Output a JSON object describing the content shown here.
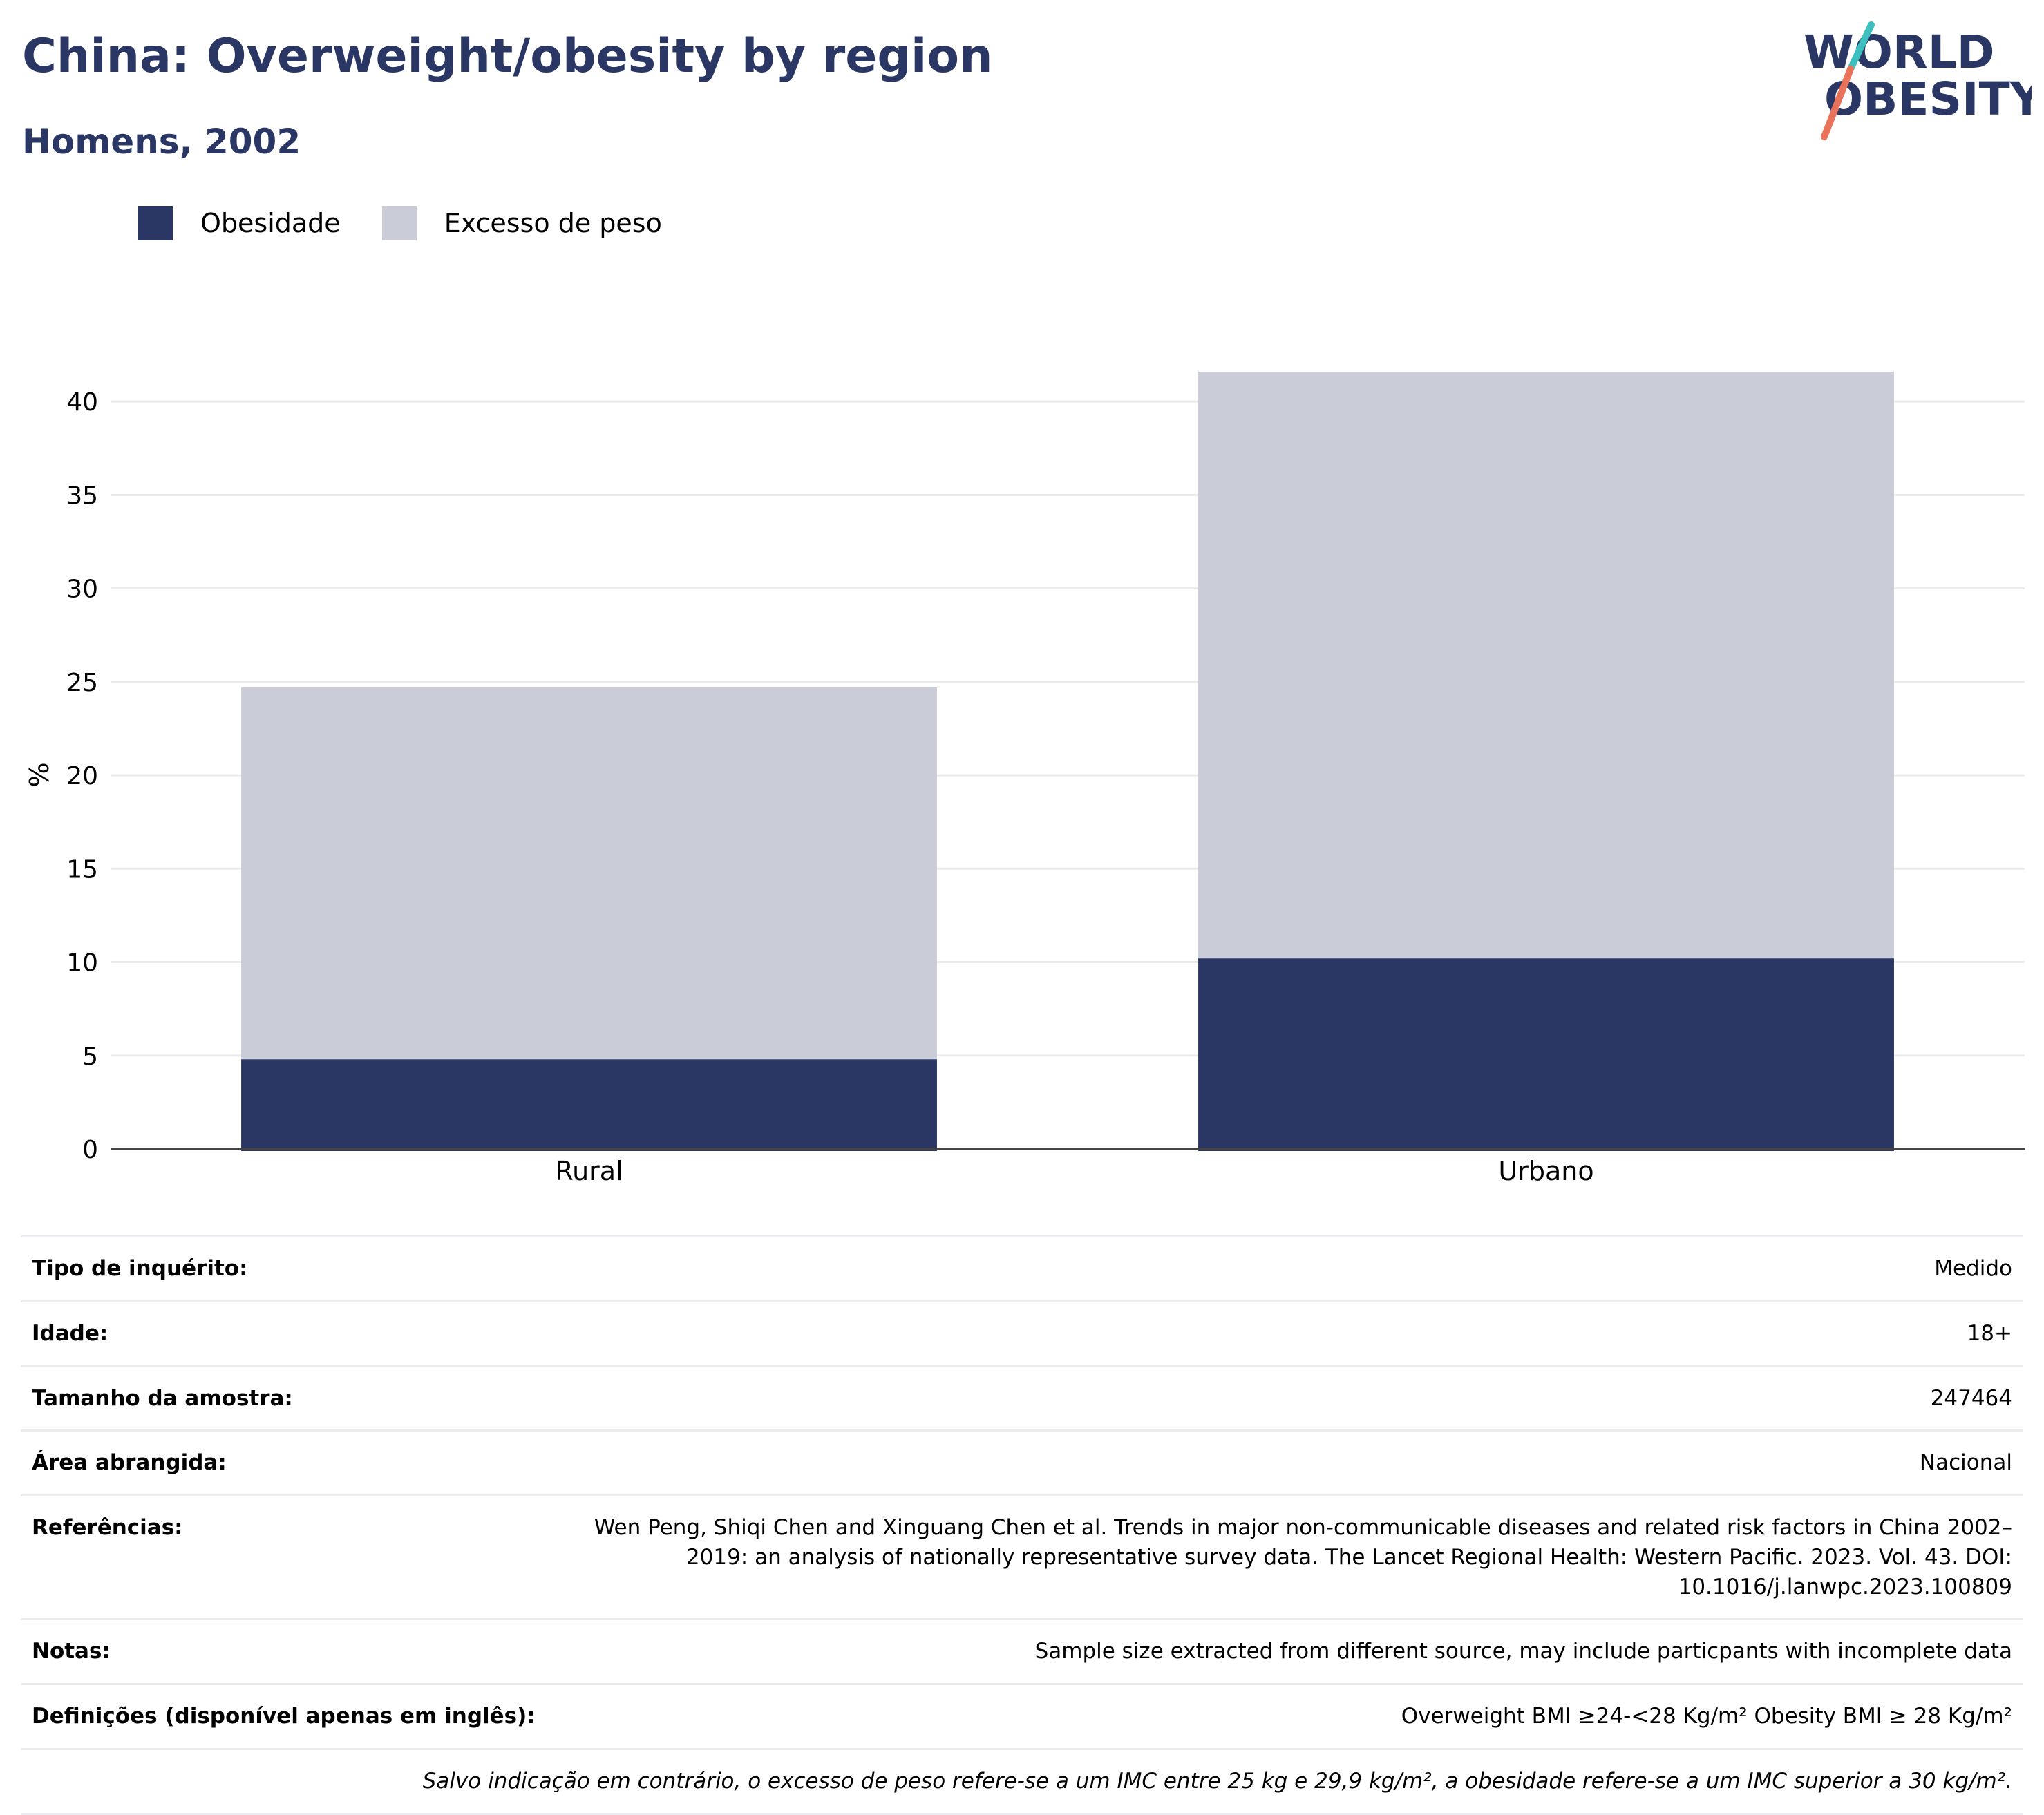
{
  "header": {
    "title": "China: Overweight/obesity by region",
    "subtitle": "Homens, 2002"
  },
  "logo": {
    "line1": "WORLD",
    "line2": "OBESITY",
    "colors": {
      "text": "#2a3764",
      "slash_top": "#3bbfbf",
      "slash_bottom": "#e8735a"
    }
  },
  "chart_data": {
    "type": "bar",
    "stacked": true,
    "categories": [
      "Rural",
      "Urbano"
    ],
    "series": [
      {
        "name": "Obesidade",
        "color": "#2a3764",
        "values": [
          4.8,
          10.2
        ]
      },
      {
        "name": "Excesso de peso",
        "color": "#cacdd8",
        "values": [
          19.9,
          31.4
        ]
      }
    ],
    "ylabel": "%",
    "xlabel": "",
    "ylim": [
      0,
      43
    ],
    "yticks": [
      0,
      5,
      10,
      15,
      20,
      25,
      30,
      35,
      40
    ],
    "grid": true,
    "legend_position": "top-left"
  },
  "info": {
    "rows": [
      {
        "label": "Tipo de inquérito:",
        "value": "Medido"
      },
      {
        "label": "Idade:",
        "value": "18+"
      },
      {
        "label": "Tamanho da amostra:",
        "value": "247464"
      },
      {
        "label": "Área abrangida:",
        "value": "Nacional"
      },
      {
        "label": "Referências:",
        "value": "Wen Peng, Shiqi Chen and Xinguang Chen et al. Trends in major non-communicable diseases and related risk factors in China 2002–2019: an analysis of nationally representative survey data. The Lancet Regional Health: Western Pacific. 2023. Vol. 43. DOI: 10.1016/j.lanwpc.2023.100809"
      },
      {
        "label": "Notas:",
        "value": "Sample size extracted from different source, may include particpants with incomplete data"
      },
      {
        "label": "Definições (disponível apenas em inglês):",
        "value": "Overweight BMI ≥24-<28 Kg/m² Obesity BMI ≥ 28 Kg/m²"
      }
    ],
    "disclaimer": "Salvo indicação em contrário, o excesso de peso refere-se a um IMC entre 25 kg e 29,9 kg/m², a obesidade refere-se a um IMC superior a 30 kg/m²."
  }
}
